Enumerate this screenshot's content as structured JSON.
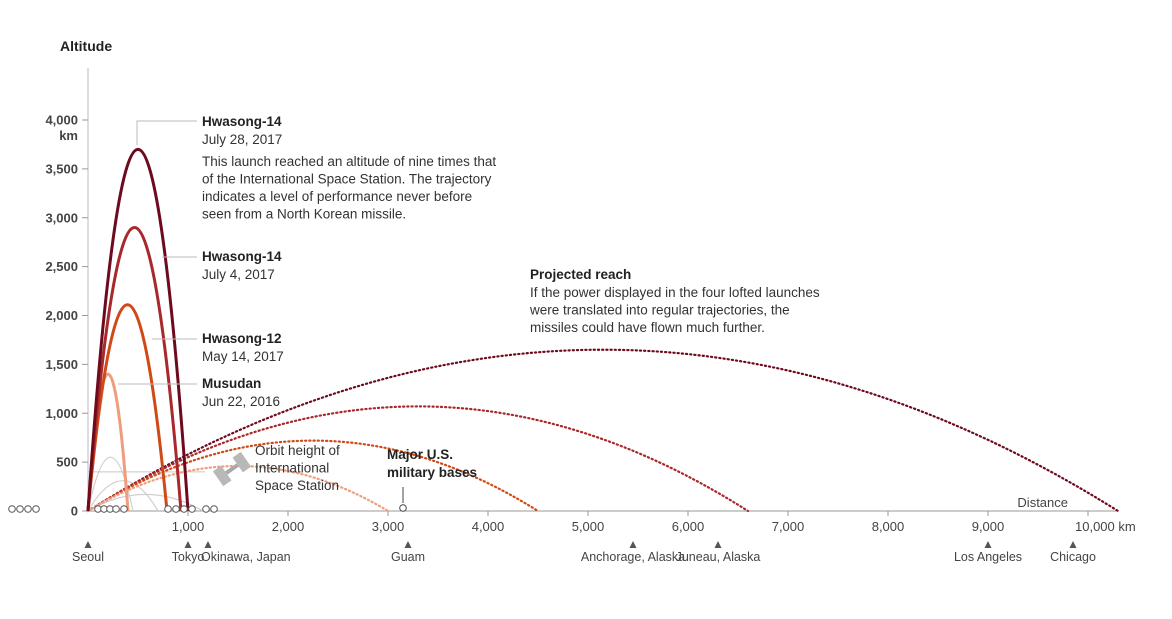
{
  "chart_data": {
    "type": "line",
    "title": "",
    "ylabel": "Altitude",
    "ylabel_unit": "km",
    "xlabel": "Distance",
    "xlim": [
      0,
      10200
    ],
    "ylim": [
      0,
      4000
    ],
    "yticks": [
      "0",
      "500",
      "1,000",
      "1,500",
      "2,000",
      "2,500",
      "3,000",
      "3,500",
      "4,000"
    ],
    "yticks_values": [
      0,
      500,
      1000,
      1500,
      2000,
      2500,
      3000,
      3500,
      4000
    ],
    "xticks": [
      "1,000",
      "2,000",
      "3,000",
      "4,000",
      "5,000",
      "6,000",
      "7,000",
      "8,000",
      "9,000",
      "10,000 km"
    ],
    "xticks_values": [
      1000,
      2000,
      3000,
      4000,
      5000,
      6000,
      7000,
      8000,
      9000,
      10000
    ],
    "grid": false,
    "series": [
      {
        "name": "Hwasong-14",
        "date": "July 28, 2017",
        "color": "#6e0a1e",
        "range_km": 1000,
        "apex_km": 3700
      },
      {
        "name": "Hwasong-14",
        "date": "July 4, 2017",
        "color": "#a8282b",
        "range_km": 930,
        "apex_km": 2900
      },
      {
        "name": "Hwasong-12",
        "date": "May 14, 2017",
        "color": "#cf4a17",
        "range_km": 790,
        "apex_km": 2110
      },
      {
        "name": "Musudan",
        "date": "Jun 22, 2016",
        "color": "#ee9e7e",
        "range_km": 400,
        "apex_km": 1400
      }
    ],
    "projected_reach": [
      {
        "color": "#6e0a1e",
        "range_km": 10300,
        "apex_km": 1650
      },
      {
        "color": "#a8282b",
        "range_km": 6600,
        "apex_km": 1070
      },
      {
        "color": "#cf4a17",
        "range_km": 4500,
        "apex_km": 720
      },
      {
        "color": "#ee9e7e",
        "range_km": 3000,
        "apex_km": 460
      }
    ],
    "older_launches": [
      {
        "range_km": 450,
        "apex_km": 550
      },
      {
        "range_km": 700,
        "apex_km": 310
      },
      {
        "range_km": 1150,
        "apex_km": 170
      }
    ],
    "iss_orbit_km": 400,
    "annotations": [
      {
        "title": "Hwasong-14",
        "subtitle": "July 28, 2017",
        "text": [
          "This launch reached an altitude of nine times that",
          "of the International Space Station. The trajectory",
          "indicates a level of performance never before",
          "seen from a North Korean missile."
        ]
      },
      {
        "title": "Hwasong-14",
        "subtitle": "July 4, 2017"
      },
      {
        "title": "Hwasong-12",
        "subtitle": "May 14, 2017"
      },
      {
        "title": "Musudan",
        "subtitle": "Jun 22, 2016"
      },
      {
        "title": "Projected reach",
        "text": [
          "If the power displayed in the four lofted launches",
          "were translated into regular trajectories, the",
          "missiles could have flown much further."
        ]
      },
      {
        "title": "",
        "text": [
          "Orbit height of",
          "International",
          "Space Station"
        ]
      },
      {
        "title": "Major U.S.",
        "text": [
          "military bases"
        ]
      }
    ],
    "cities": [
      {
        "name": "Seoul",
        "km": 0
      },
      {
        "name": "Tokyo",
        "km": 1000
      },
      {
        "name": "Okinawa, Japan",
        "km": 1200
      },
      {
        "name": "Guam",
        "km": 3200
      },
      {
        "name": "Anchorage, Alaska",
        "km": 5450
      },
      {
        "name": "Juneau, Alaska",
        "km": 6300
      },
      {
        "name": "Los Angeles",
        "km": 9000
      },
      {
        "name": "Chicago",
        "km": 9850
      }
    ]
  }
}
